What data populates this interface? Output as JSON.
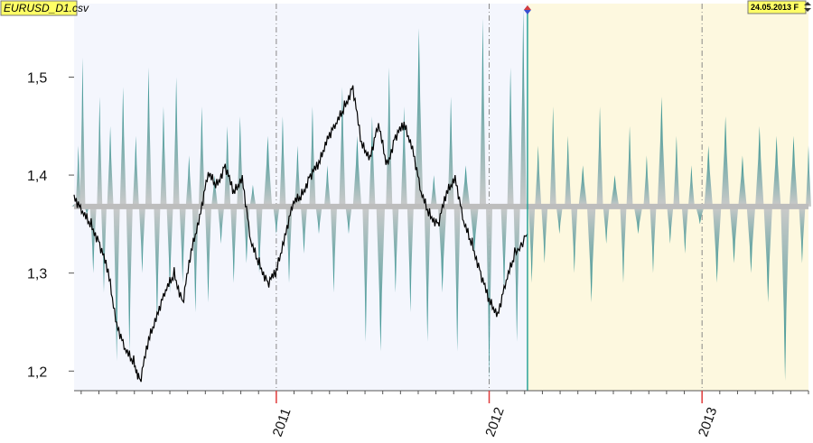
{
  "window": {
    "file_label": "EURUSD_D1.csv",
    "forecast_date_label": "24.05.2013 F"
  },
  "colors": {
    "history_bg": "#f4f6fd",
    "forecast_bg": "#fdf8df",
    "baseline": "#bdbdbd",
    "wave_teal": "#1f8a88",
    "price_line": "#000000",
    "grid_dash": "#888888",
    "divider": "#2aa39a",
    "tick_red": "#e03a3a",
    "label_bg": "#ffff66"
  },
  "chart_data": {
    "type": "line",
    "title": "",
    "xlabel": "",
    "ylabel": "",
    "ylim": [
      1.18,
      1.575
    ],
    "yticks": [
      1.2,
      1.3,
      1.4,
      1.5
    ],
    "ytick_labels": [
      "1,2",
      "1,3",
      "1,4",
      "1,5"
    ],
    "x_range_years": [
      2010.05,
      2013.5
    ],
    "xticks": [
      2011,
      2012,
      2013
    ],
    "xtick_labels": [
      "2011",
      "2012",
      "2013"
    ],
    "forecast_start": 2012.18,
    "baseline_value": 1.368,
    "series": [
      {
        "kind": "price",
        "x": [
          2010.05,
          2010.09,
          2010.13,
          2010.17,
          2010.21,
          2010.25,
          2010.29,
          2010.33,
          2010.36,
          2010.4,
          2010.44,
          2010.48,
          2010.52,
          2010.56,
          2010.6,
          2010.64,
          2010.68,
          2010.72,
          2010.76,
          2010.8,
          2010.84,
          2010.88,
          2010.92,
          2010.96,
          2011.0,
          2011.04,
          2011.08,
          2011.12,
          2011.16,
          2011.2,
          2011.24,
          2011.28,
          2011.32,
          2011.36,
          2011.4,
          2011.44,
          2011.48,
          2011.52,
          2011.56,
          2011.6,
          2011.64,
          2011.68,
          2011.72,
          2011.76,
          2011.8,
          2011.84,
          2011.88,
          2011.92,
          2011.96,
          2012.0,
          2012.04,
          2012.08,
          2012.12,
          2012.18
        ],
        "y": [
          1.38,
          1.36,
          1.35,
          1.33,
          1.3,
          1.25,
          1.22,
          1.21,
          1.19,
          1.23,
          1.26,
          1.28,
          1.3,
          1.27,
          1.32,
          1.36,
          1.4,
          1.39,
          1.41,
          1.38,
          1.4,
          1.33,
          1.31,
          1.29,
          1.3,
          1.34,
          1.37,
          1.38,
          1.4,
          1.41,
          1.44,
          1.45,
          1.47,
          1.49,
          1.43,
          1.42,
          1.45,
          1.41,
          1.44,
          1.45,
          1.43,
          1.38,
          1.36,
          1.35,
          1.38,
          1.4,
          1.35,
          1.33,
          1.3,
          1.27,
          1.26,
          1.29,
          1.32,
          1.34
        ]
      },
      {
        "kind": "wave",
        "x": [
          2010.05,
          2010.07,
          2010.09,
          2010.11,
          2010.14,
          2010.17,
          2010.19,
          2010.22,
          2010.25,
          2010.28,
          2010.31,
          2010.34,
          2010.37,
          2010.4,
          2010.44,
          2010.47,
          2010.5,
          2010.53,
          2010.56,
          2010.59,
          2010.62,
          2010.65,
          2010.68,
          2010.71,
          2010.74,
          2010.77,
          2010.8,
          2010.83,
          2010.86,
          2010.89,
          2010.92,
          2010.96,
          2011.0,
          2011.03,
          2011.06,
          2011.1,
          2011.13,
          2011.17,
          2011.2,
          2011.24,
          2011.27,
          2011.31,
          2011.34,
          2011.38,
          2011.42,
          2011.45,
          2011.49,
          2011.53,
          2011.56,
          2011.6,
          2011.63,
          2011.67,
          2011.71,
          2011.74,
          2011.78,
          2011.82,
          2011.85,
          2011.89,
          2011.93,
          2011.97,
          2012.0,
          2012.04,
          2012.07,
          2012.1,
          2012.13,
          2012.16,
          2012.2,
          2012.23,
          2012.26,
          2012.3,
          2012.33,
          2012.37,
          2012.4,
          2012.44,
          2012.48,
          2012.52,
          2012.55,
          2012.59,
          2012.63,
          2012.66,
          2012.7,
          2012.74,
          2012.77,
          2012.81,
          2012.85,
          2012.88,
          2012.92,
          2012.95,
          2012.99,
          2013.03,
          2013.07,
          2013.11,
          2013.15,
          2013.19,
          2013.23,
          2013.27,
          2013.31,
          2013.35,
          2013.39,
          2013.43,
          2013.47,
          2013.5
        ],
        "y": [
          1.37,
          1.43,
          1.52,
          1.36,
          1.3,
          1.48,
          1.28,
          1.45,
          1.21,
          1.49,
          1.22,
          1.44,
          1.3,
          1.51,
          1.25,
          1.47,
          1.28,
          1.5,
          1.29,
          1.42,
          1.26,
          1.47,
          1.27,
          1.4,
          1.33,
          1.45,
          1.29,
          1.46,
          1.31,
          1.39,
          1.3,
          1.44,
          1.34,
          1.46,
          1.29,
          1.43,
          1.32,
          1.47,
          1.34,
          1.41,
          1.28,
          1.49,
          1.34,
          1.44,
          1.23,
          1.46,
          1.22,
          1.51,
          1.28,
          1.47,
          1.26,
          1.55,
          1.23,
          1.4,
          1.28,
          1.48,
          1.22,
          1.41,
          1.32,
          1.56,
          1.19,
          1.37,
          1.28,
          1.51,
          1.23,
          1.57,
          1.29,
          1.43,
          1.31,
          1.47,
          1.34,
          1.44,
          1.3,
          1.41,
          1.27,
          1.47,
          1.33,
          1.4,
          1.29,
          1.45,
          1.34,
          1.42,
          1.3,
          1.48,
          1.33,
          1.44,
          1.32,
          1.41,
          1.35,
          1.43,
          1.29,
          1.46,
          1.31,
          1.42,
          1.3,
          1.45,
          1.27,
          1.44,
          1.19,
          1.44,
          1.31,
          1.43
        ]
      }
    ],
    "grid": "vertical-dash"
  }
}
